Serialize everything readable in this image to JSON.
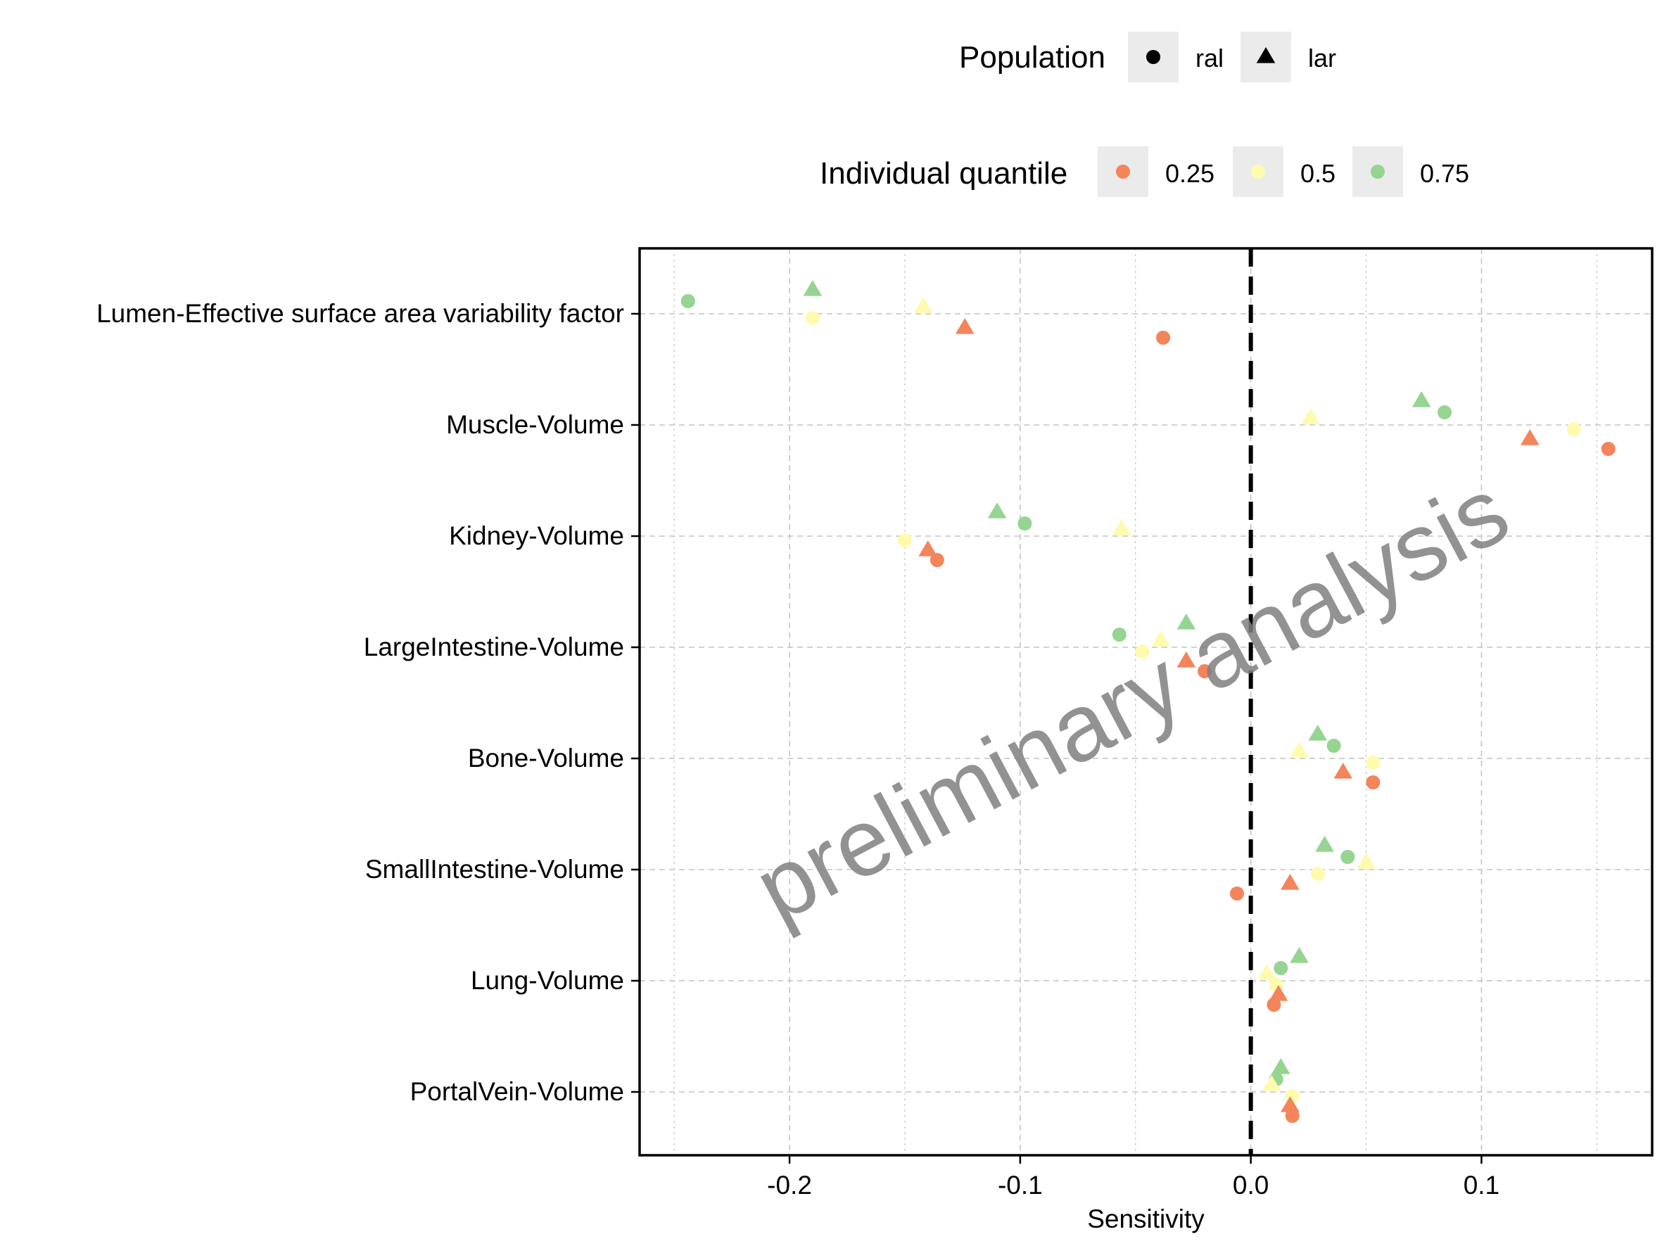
{
  "chart_data": {
    "type": "scatter",
    "title": "",
    "xlabel": "Sensitivity",
    "ylabel": "",
    "xlim": [
      -0.265,
      0.174
    ],
    "x_ticks": [
      -0.2,
      -0.1,
      0.0,
      0.1
    ],
    "x_tick_labels": [
      "-0.2",
      "-0.1",
      "0.0",
      "0.1"
    ],
    "categories": [
      "Lumen-Effective surface area variability factor",
      "Muscle-Volume",
      "Kidney-Volume",
      "LargeIntestine-Volume",
      "Bone-Volume",
      "SmallIntestine-Volume",
      "Lung-Volume",
      "PortalVein-Volume"
    ],
    "reference_line": {
      "x": 0,
      "style": "dashed"
    },
    "grid": true,
    "legend_position": "top",
    "watermark": "preliminary analysis",
    "legend": {
      "population": {
        "title": "Population",
        "items": [
          {
            "label": "ral",
            "shape": "circle"
          },
          {
            "label": "lar",
            "shape": "triangle"
          }
        ]
      },
      "quantile": {
        "title": "Individual quantile",
        "items": [
          {
            "label": "0.25",
            "color": "#F4845A"
          },
          {
            "label": "0.5",
            "color": "#FFFBAE"
          },
          {
            "label": "0.75",
            "color": "#96D492"
          }
        ]
      }
    },
    "series": [
      {
        "population": "ral",
        "quantile": "0.25",
        "shape": "circle",
        "color": "#F4845A",
        "values": [
          -0.038,
          0.155,
          -0.136,
          -0.02,
          0.053,
          -0.006,
          0.01,
          0.018
        ]
      },
      {
        "population": "ral",
        "quantile": "0.5",
        "shape": "circle",
        "color": "#FFFBAE",
        "values": [
          -0.19,
          0.14,
          -0.15,
          -0.047,
          0.053,
          0.029,
          0.011,
          0.018
        ]
      },
      {
        "population": "ral",
        "quantile": "0.75",
        "shape": "circle",
        "color": "#96D492",
        "values": [
          -0.244,
          0.084,
          -0.098,
          -0.057,
          0.036,
          0.042,
          0.013,
          0.011
        ]
      },
      {
        "population": "lar",
        "quantile": "0.25",
        "shape": "triangle",
        "color": "#F4845A",
        "values": [
          -0.124,
          0.121,
          -0.14,
          -0.028,
          0.04,
          0.017,
          0.012,
          0.017
        ]
      },
      {
        "population": "lar",
        "quantile": "0.5",
        "shape": "triangle",
        "color": "#FFFBAE",
        "values": [
          -0.142,
          0.026,
          -0.056,
          -0.039,
          0.021,
          0.05,
          0.007,
          0.009
        ]
      },
      {
        "population": "lar",
        "quantile": "0.75",
        "shape": "triangle",
        "color": "#96D492",
        "values": [
          -0.19,
          0.074,
          -0.11,
          -0.028,
          0.029,
          0.032,
          0.021,
          0.013
        ]
      }
    ]
  }
}
